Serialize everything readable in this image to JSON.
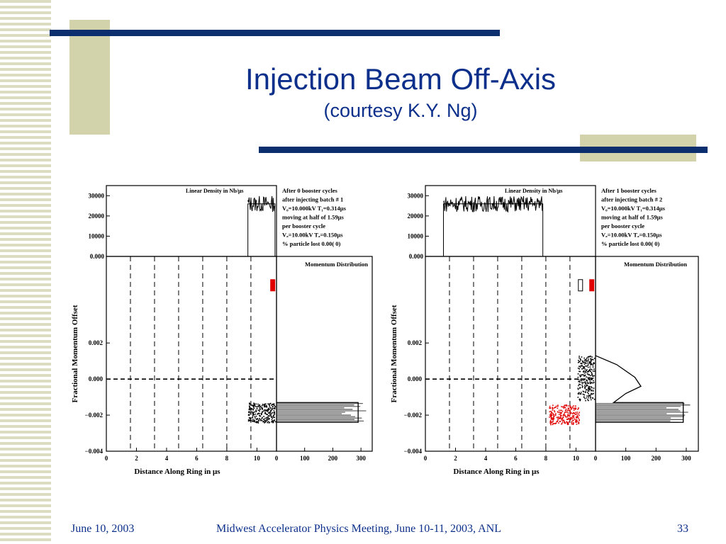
{
  "slide": {
    "title": "Injection Beam Off-Axis",
    "subtitle": "(courtesy K.Y. Ng)",
    "footer_date": "June 10, 2003",
    "footer_meeting": "Midwest Accelerator Physics Meeting, June 10-11, 2003, ANL",
    "page_number": "33"
  },
  "colors": {
    "title": "#0b2f8a",
    "bars": "#0b2f6e",
    "accent_block": "#d3d3ab",
    "particles_red": "#e00000"
  },
  "chart_data": [
    {
      "type": "scatter",
      "top_panel": {
        "label": "Linear Density in Nb/μs",
        "ylim": [
          0,
          35000
        ],
        "yticks": [
          "30000",
          "20000",
          "10000",
          "0.000"
        ],
        "profile": [
          [
            9.4,
            0
          ],
          [
            9.4,
            26000
          ],
          [
            11.2,
            26000
          ],
          [
            11.2,
            0
          ]
        ]
      },
      "info": [
        "After  0 booster cycles",
        "after injecting batch #  1",
        "V₀=10.000kV T₁=0.314μs",
        "moving at half of 1.59μs",
        "per booster cycle",
        "Vₐ=10.00kV Tₐ=0.150μs",
        "% particle lost  0.00(   0)"
      ],
      "ylabel": "Fractional Momentum Offset",
      "xlabel": "Distance Along Ring in μs",
      "xlim": [
        0,
        11.3
      ],
      "ylim": [
        -0.004,
        0.0068
      ],
      "yticks": [
        "0.002",
        "0.000",
        "−0.002",
        "−0.004"
      ],
      "xticks": [
        "0",
        "2",
        "4",
        "6",
        "8",
        "10"
      ],
      "dashed_x": [
        1.6,
        3.2,
        4.8,
        6.4,
        8.0,
        9.6
      ],
      "particle_blocks": [
        {
          "xmin": 9.4,
          "xmax": 11.2,
          "ymin": -0.0024,
          "ymax": -0.0013,
          "color": "#000000"
        }
      ],
      "markers": [
        {
          "x": 11.05,
          "y": 0.0052,
          "color": "#e00000"
        }
      ],
      "momentum": {
        "label": "Momentum Distribution",
        "xticks": [
          "0",
          "100",
          "200",
          "300"
        ],
        "xlim": [
          0,
          340
        ],
        "profile": [
          [
            0,
            -0.0013
          ],
          [
            290,
            -0.0013
          ],
          [
            290,
            -0.0024
          ],
          [
            0,
            -0.0024
          ]
        ]
      }
    },
    {
      "type": "scatter",
      "top_panel": {
        "label": "Linear Density in Nb/μs",
        "ylim": [
          0,
          35000
        ],
        "yticks": [
          "30000",
          "20000",
          "10000",
          "0.000"
        ],
        "profile": [
          [
            1.2,
            0
          ],
          [
            1.2,
            26000
          ],
          [
            7.8,
            26000
          ],
          [
            7.8,
            0
          ]
        ]
      },
      "info": [
        "After  1 booster cycles",
        "after injecting batch #  2",
        "V₀=10.000kV T₁=0.314μs",
        "moving at half of 1.59μs",
        "per booster cycle",
        "Vₐ=10.00kV Tₐ=0.150μs",
        "% particle lost  0.00(   0)"
      ],
      "ylabel": "Fractional Momentum Offset",
      "xlabel": "Distance Along Ring in μs",
      "xlim": [
        0,
        11.3
      ],
      "ylim": [
        -0.004,
        0.0068
      ],
      "yticks": [
        "0.002",
        "0.000",
        "−0.002",
        "−0.004"
      ],
      "xticks": [
        "0",
        "2",
        "4",
        "6",
        "8",
        "10"
      ],
      "dashed_x": [
        1.6,
        3.2,
        4.8,
        6.4,
        8.0,
        9.6
      ],
      "particle_blocks": [
        {
          "xmin": 8.2,
          "xmax": 10.2,
          "ymin": -0.0025,
          "ymax": -0.0014,
          "color": "#e00000"
        },
        {
          "xmin": 10.1,
          "xmax": 11.2,
          "ymin": -0.0012,
          "ymax": 0.0013,
          "color": "#000000"
        }
      ],
      "markers": [
        {
          "x": 11.05,
          "y": 0.0052,
          "color": "#e00000"
        },
        {
          "x": 10.3,
          "y": 0.0052,
          "color": "#ffffff"
        }
      ],
      "momentum": {
        "label": "Momentum Distribution",
        "xticks": [
          "0",
          "100",
          "200",
          "300"
        ],
        "xlim": [
          0,
          340
        ],
        "profile": [
          [
            0,
            0.0013
          ],
          [
            70,
            0.0008
          ],
          [
            130,
            0.0001
          ],
          [
            150,
            -0.0004
          ],
          [
            100,
            -0.0008
          ],
          [
            60,
            -0.0013
          ],
          [
            290,
            -0.0013
          ],
          [
            290,
            -0.0024
          ],
          [
            0,
            -0.0024
          ]
        ]
      }
    }
  ]
}
